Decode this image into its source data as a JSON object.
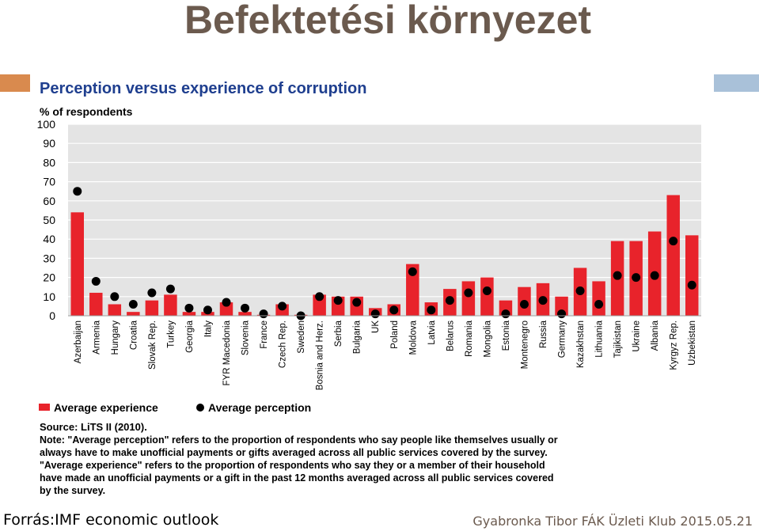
{
  "slide": {
    "title": "Befektetési környezet",
    "source_label": "Forrás:IMF economic outlook",
    "footer": "Gyabronka Tibor FÁK Üzleti Klub  2015.05.21"
  },
  "colors": {
    "title": "#6b5a4e",
    "bar": "#e8232b",
    "dot": "#000000",
    "plot_bg": "#e4e4e4",
    "chart_title": "#1f3f8f",
    "accent_left": "#d98a4e",
    "accent_right": "#a9c1d9"
  },
  "chart_data": {
    "type": "bar",
    "title": "Perception versus experience of corruption",
    "ylabel": "% of respondents",
    "ylim": [
      0,
      100
    ],
    "yticks": [
      0,
      10,
      20,
      30,
      40,
      50,
      60,
      70,
      80,
      90,
      100
    ],
    "grid": true,
    "legend_position": "bottom-left",
    "categories": [
      "Azerbaijan",
      "Armenia",
      "Hungary",
      "Croatia",
      "Slovak Rep.",
      "Turkey",
      "Georgia",
      "Italy",
      "FYR Macedonia",
      "Slovenia",
      "France",
      "Czech Rep.",
      "Sweden",
      "Bosnia and Herz.",
      "Serbia",
      "Bulgaria",
      "UK",
      "Poland",
      "Moldova",
      "Latvia",
      "Belarus",
      "Romania",
      "Mongolia",
      "Estonia",
      "Montenegro",
      "Russia",
      "Germany",
      "Kazakhstan",
      "Lithuania",
      "Tajikistan",
      "Ukraine",
      "Albania",
      "Kyrgyz Rep.",
      "Uzbekistan"
    ],
    "series": [
      {
        "name": "Average experience",
        "kind": "bar",
        "values": [
          54,
          12,
          6,
          2,
          8,
          11,
          2,
          2,
          7,
          2,
          0.5,
          6,
          0.5,
          11,
          10,
          10,
          4,
          6,
          27,
          7,
          14,
          18,
          20,
          8,
          15,
          17,
          10,
          25,
          18,
          39,
          39,
          44,
          63,
          42
        ]
      },
      {
        "name": "Average perception",
        "kind": "dot",
        "values": [
          65,
          18,
          10,
          6,
          12,
          14,
          4,
          3,
          7,
          4,
          1,
          5,
          0,
          10,
          8,
          7,
          1,
          3,
          23,
          3,
          8,
          12,
          13,
          1,
          6,
          8,
          1,
          13,
          6,
          21,
          20,
          21,
          39,
          16
        ]
      }
    ],
    "source": "Source: LiTS II (2010).",
    "notes": [
      "Note: \"Average perception\" refers to the proportion of respondents who say people like themselves usually or",
      "always have to make unofficial payments or gifts averaged across all public services covered by the survey.",
      "\"Average experience\" refers to the proportion of respondents who say they or a member of their household",
      "have made an unofficial payments or a gift in the past 12 months averaged across all public services covered",
      "by the survey."
    ]
  }
}
